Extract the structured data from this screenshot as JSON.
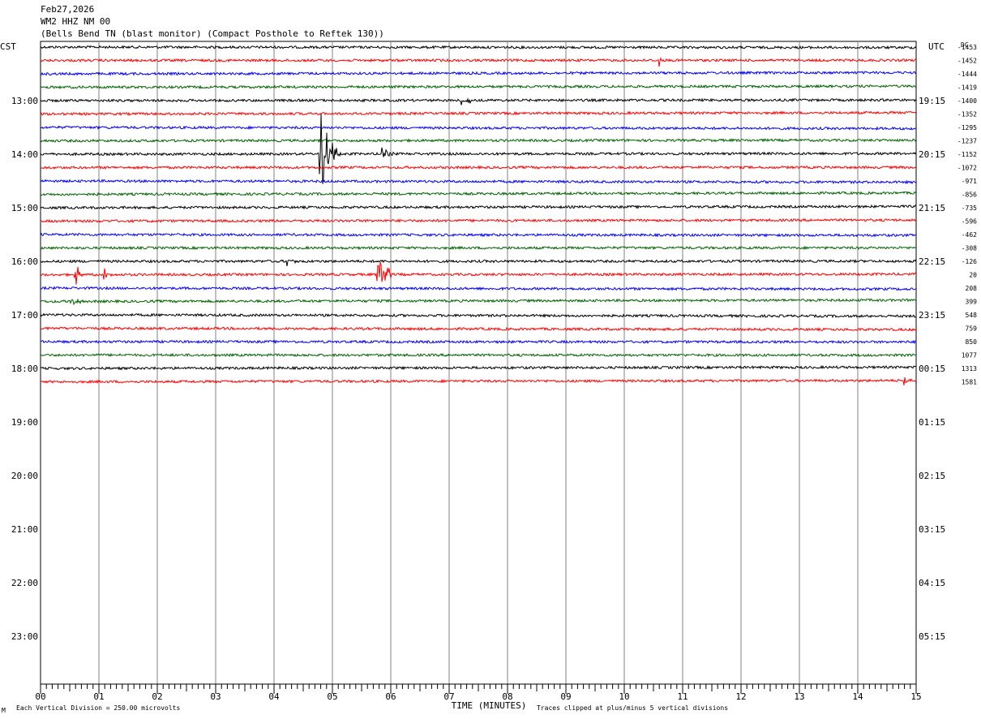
{
  "header": {
    "date": "Feb27,2026",
    "station": "WM2 HHZ NM 00",
    "description": "(Bells Bend TN (blast monitor) (Compact Posthole to Reftek 130))"
  },
  "left_zone": "CST",
  "right_zone": "UTC",
  "dc_label": "DC",
  "footer": {
    "scale": "Each Vertical Division =  250.00 microvolts",
    "clip": "Traces clipped at plus/minus 5 vertical divisions",
    "corner_mark": "M"
  },
  "colors": {
    "black": "#000000",
    "red": "#ff0000",
    "blue": "#0000ff",
    "green": "#006400",
    "grid": "#808080"
  },
  "chart_data": {
    "type": "line",
    "title": "",
    "xlabel": "TIME (MINUTES)",
    "xlim": [
      0,
      15
    ],
    "x_ticks": [
      "00",
      "01",
      "02",
      "03",
      "04",
      "05",
      "06",
      "07",
      "08",
      "09",
      "10",
      "11",
      "12",
      "13",
      "14",
      "15"
    ],
    "left_hour_labels": [
      "13:00",
      "14:00",
      "15:00",
      "16:00",
      "17:00",
      "18:00",
      "19:00",
      "20:00",
      "21:00",
      "22:00",
      "23:00"
    ],
    "right_hour_labels": [
      "19:15",
      "20:15",
      "21:15",
      "22:15",
      "23:15",
      "00:15",
      "01:15",
      "02:15",
      "03:15",
      "04:15",
      "05:15"
    ],
    "trace_count": 26,
    "trace_color_cycle": [
      "black",
      "red",
      "blue",
      "green"
    ],
    "dc_offsets": [
      "-1453",
      "-1452",
      "-1444",
      "-1419",
      "-1400",
      "-1352",
      "-1295",
      "-1237",
      "-1152",
      "-1072",
      "-971",
      "-856",
      "-735",
      "-596",
      "-462",
      "-308",
      "-126",
      "20",
      "208",
      "399",
      "548",
      "759",
      "850",
      "1077",
      "1313",
      "1581"
    ],
    "events": [
      {
        "trace": 8,
        "minute": 4.8,
        "amplitude": 5.0,
        "duration": 0.35
      },
      {
        "trace": 8,
        "minute": 5.85,
        "amplitude": 1.5,
        "duration": 0.2
      },
      {
        "trace": 17,
        "minute": 5.78,
        "amplitude": 5.0,
        "duration": 0.25
      },
      {
        "trace": 17,
        "minute": 0.6,
        "amplitude": 1.2,
        "duration": 0.15
      },
      {
        "trace": 17,
        "minute": 1.1,
        "amplitude": 1.0,
        "duration": 0.15
      },
      {
        "trace": 16,
        "minute": 4.2,
        "amplitude": 0.6,
        "duration": 0.3
      },
      {
        "trace": 4,
        "minute": 7.2,
        "amplitude": 0.6,
        "duration": 0.3
      },
      {
        "trace": 19,
        "minute": 0.5,
        "amplitude": 0.7,
        "duration": 0.3
      },
      {
        "trace": 1,
        "minute": 10.6,
        "amplitude": 0.7,
        "duration": 0.05
      },
      {
        "trace": 25,
        "minute": 14.8,
        "amplitude": 0.5,
        "duration": 0.2
      }
    ]
  }
}
